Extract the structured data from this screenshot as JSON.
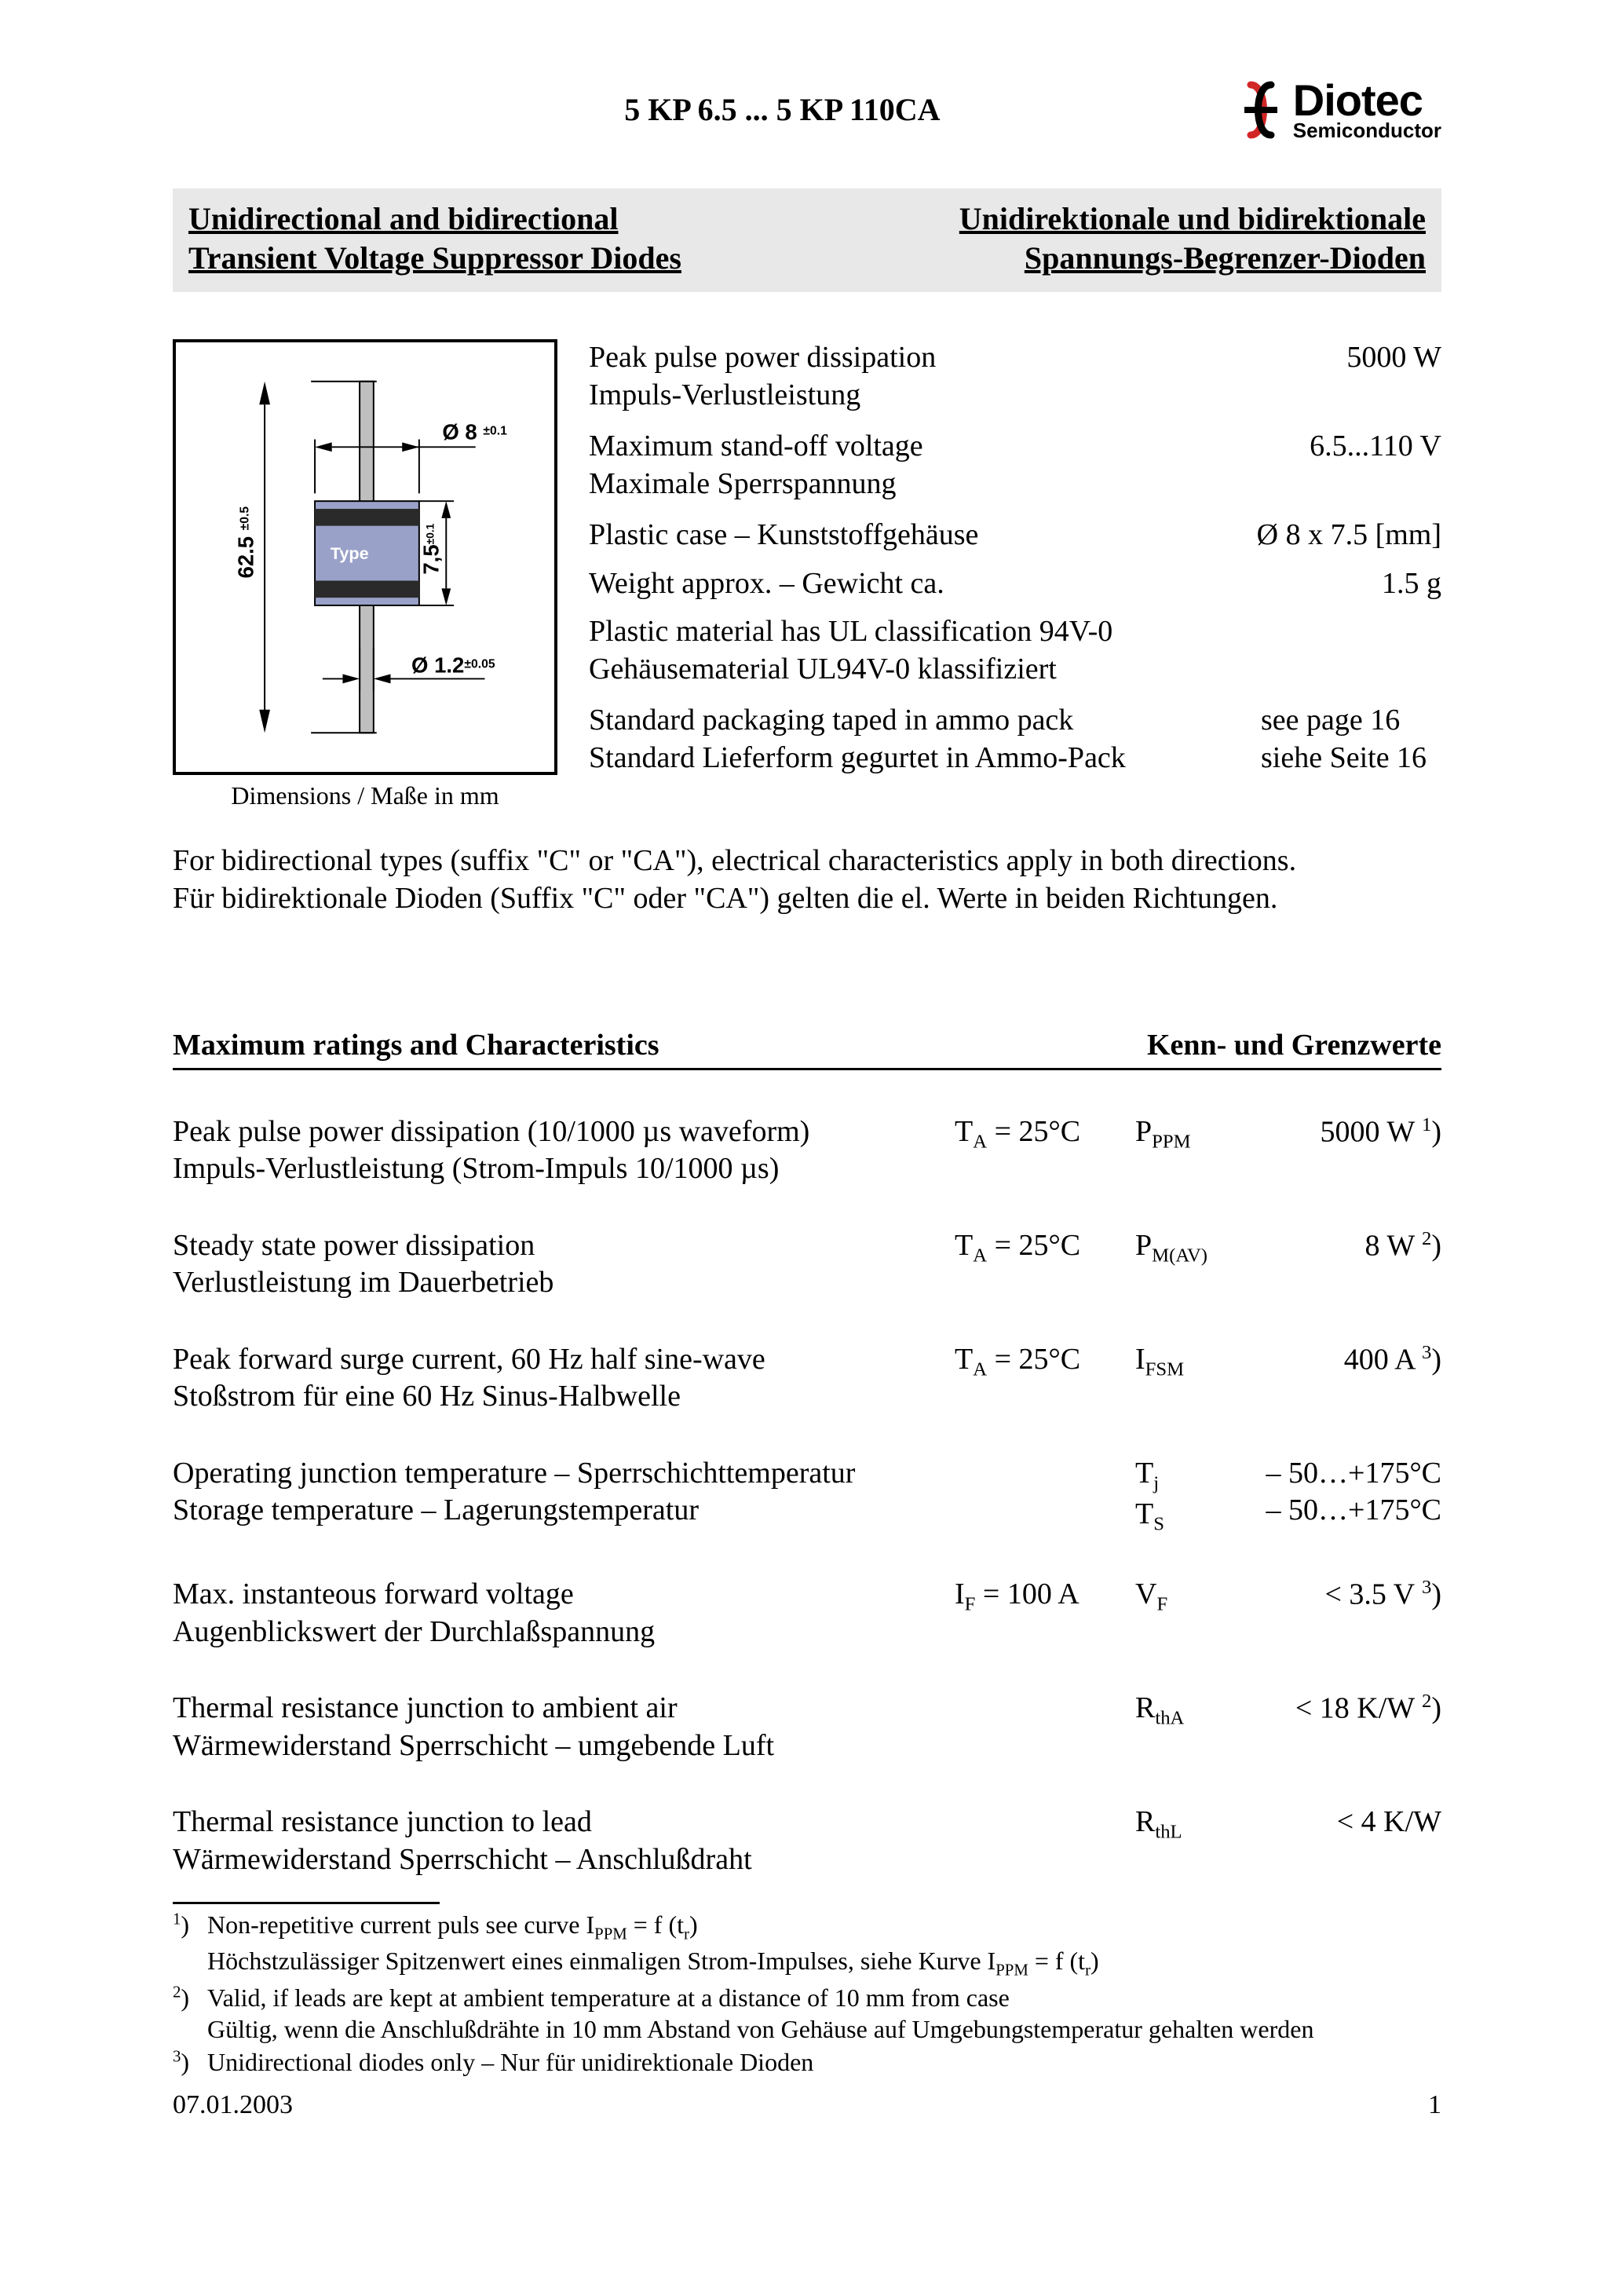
{
  "header": {
    "part_range": "5 KP 6.5 ... 5 KP 110CA",
    "logo_name": "Diotec",
    "logo_subtitle": "Semiconductor",
    "logo_color": "#d22626"
  },
  "title_bar": {
    "en_line1": "Unidirectional and bidirectional",
    "en_line2": "Transient Voltage Suppressor Diodes",
    "de_line1": "Unidirektionale und bidirektionale",
    "de_line2": "Spannungs-Begrenzer-Dioden"
  },
  "diagram": {
    "caption": "Dimensions / Maße in mm",
    "type_label": "Type",
    "body_fill": "#9aa1c8",
    "lead_fill": "#bfbfbf",
    "dim_height_body": "7,5",
    "dim_height_body_tol": "±0.1",
    "dim_body_dia": "Ø 8",
    "dim_body_dia_tol": "±0.1",
    "dim_lead_dia": "Ø 1.2",
    "dim_lead_dia_tol": "±0.05",
    "dim_overall_len": "62.5",
    "dim_overall_len_tol": "±0.5"
  },
  "specs": [
    {
      "en": "Peak pulse power dissipation",
      "de": "Impuls-Verlustleistung",
      "value": "5000 W"
    },
    {
      "en": "Maximum stand-off voltage",
      "de": "Maximale Sperrspannung",
      "value": "6.5...110 V"
    },
    {
      "en": "Plastic case – Kunststoffgehäuse",
      "de": "",
      "value": "Ø 8 x 7.5 [mm]"
    },
    {
      "en": "Weight approx. – Gewicht ca.",
      "de": "",
      "value": "1.5 g"
    },
    {
      "en": "Plastic material has UL classification 94V-0",
      "de": "Gehäusematerial UL94V-0 klassifiziert",
      "value": ""
    },
    {
      "en": "Standard packaging taped in ammo pack",
      "de": "Standard Lieferform gegurtet in Ammo-Pack",
      "value_en": "see page 16",
      "value_de": "siehe Seite 16"
    }
  ],
  "bidi_note": {
    "en": "For bidirectional types (suffix \"C\" or \"CA\"), electrical characteristics apply in both directions.",
    "de": "Für bidirektionale Dioden (Suffix \"C\" oder \"CA\") gelten die el. Werte in beiden Richtungen."
  },
  "ratings_header": {
    "left": "Maximum ratings and Characteristics",
    "right": "Kenn- und Grenzwerte"
  },
  "ratings": [
    {
      "desc_en": "Peak pulse power dissipation (10/1000 µs waveform)",
      "desc_de": "Impuls-Verlustleistung (Strom-Impuls 10/1000 µs)",
      "cond_html": "T<sub>A</sub> = 25°C",
      "sym_html": "P<sub>PPM</sub>",
      "val_html": "5000 W <sup>1</sup>)"
    },
    {
      "desc_en": "Steady state power dissipation",
      "desc_de": "Verlustleistung im Dauerbetrieb",
      "cond_html": "T<sub>A</sub> = 25°C",
      "sym_html": "P<sub>M(AV)</sub>",
      "val_html": "8 W <sup>2</sup>)"
    },
    {
      "desc_en": "Peak forward surge current, 60 Hz half sine-wave",
      "desc_de": "Stoßstrom für eine 60 Hz Sinus-Halbwelle",
      "cond_html": "T<sub>A</sub> = 25°C",
      "sym_html": "I<sub>FSM</sub>",
      "val_html": "400 A <sup>3</sup>)"
    },
    {
      "desc_en": "Operating junction temperature – Sperrschichttemperatur",
      "desc_de": "Storage temperature – Lagerungstemperatur",
      "cond_html": "",
      "sym_html": "T<sub>j</sub><br>T<sub>S</sub>",
      "val_html": "– 50…+175°C<br>– 50…+175°C"
    },
    {
      "desc_en": "Max. instanteous forward voltage",
      "desc_de": "Augenblickswert der Durchlaßspannung",
      "cond_html": "I<sub>F</sub> = 100 A",
      "sym_html": "V<sub>F</sub>",
      "val_html": "&lt; 3.5 V <sup>3</sup>)"
    },
    {
      "desc_en": "Thermal resistance junction to ambient air",
      "desc_de": "Wärmewiderstand Sperrschicht – umgebende Luft",
      "cond_html": "",
      "sym_html": "R<sub>thA</sub>",
      "val_html": "&lt; 18 K/W <sup>2</sup>)"
    },
    {
      "desc_en": "Thermal resistance junction to lead",
      "desc_de": "Wärmewiderstand Sperrschicht – Anschlußdraht",
      "cond_html": "",
      "sym_html": "R<sub>thL</sub>",
      "val_html": "&lt; 4 K/W"
    }
  ],
  "footnotes": [
    {
      "num": "1",
      "en_html": "Non-repetitive current puls see curve I<sub>PPM</sub> = f (t<sub>r</sub>)",
      "de_html": "Höchstzulässiger Spitzenwert eines einmaligen Strom-Impulses, siehe Kurve I<sub>PPM</sub> = f (t<sub>r</sub>)"
    },
    {
      "num": "2",
      "en_html": "Valid, if leads are kept at ambient temperature at a distance of 10 mm from case",
      "de_html": "Gültig, wenn die Anschlußdrähte in 10 mm Abstand von Gehäuse auf Umgebungstemperatur gehalten werden"
    },
    {
      "num": "3",
      "en_html": "Unidirectional diodes only – Nur für unidirektionale Dioden",
      "de_html": ""
    }
  ],
  "footer": {
    "date": "07.01.2003",
    "page": "1"
  }
}
